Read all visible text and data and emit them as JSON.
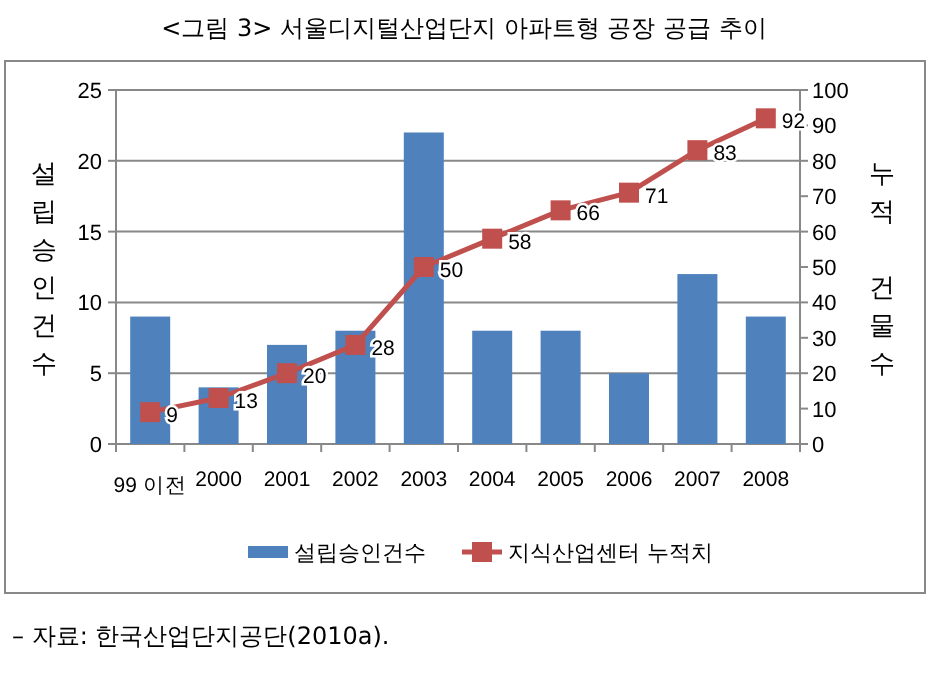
{
  "chart_data": {
    "type": "bar",
    "title": "<그림 3> 서울디지털산업단지 아파트형 공장 공급 추이",
    "categories": [
      "99 이전",
      "2000",
      "2001",
      "2002",
      "2003",
      "2004",
      "2005",
      "2006",
      "2007",
      "2008"
    ],
    "series": [
      {
        "name": "설립승인건수",
        "color": "#4f81bd",
        "values": [
          9,
          4,
          7,
          8,
          22,
          8,
          8,
          5,
          12,
          9
        ]
      },
      {
        "name": "지식산업센터 누적치",
        "type": "line",
        "axis": "y2",
        "color": "#c0504d",
        "marker": "square",
        "values": [
          9,
          13,
          20,
          28,
          50,
          58,
          66,
          71,
          83,
          92
        ],
        "value_labels": [
          "9",
          "13",
          "20",
          "28",
          "50",
          "58",
          "66",
          "71",
          "83",
          "92"
        ]
      }
    ],
    "ylabel": "설립승인건수",
    "y2label": "누적 건물수",
    "ylim": [
      0,
      25
    ],
    "yticks": [
      0,
      5,
      10,
      15,
      20,
      25
    ],
    "y2lim": [
      0,
      100
    ],
    "y2ticks": [
      0,
      10,
      20,
      30,
      40,
      50,
      60,
      70,
      80,
      90,
      100
    ],
    "grid": "y",
    "legend": "bottom",
    "annotations": [
      "– 자료: 한국산업단지공단(2010a)."
    ]
  }
}
